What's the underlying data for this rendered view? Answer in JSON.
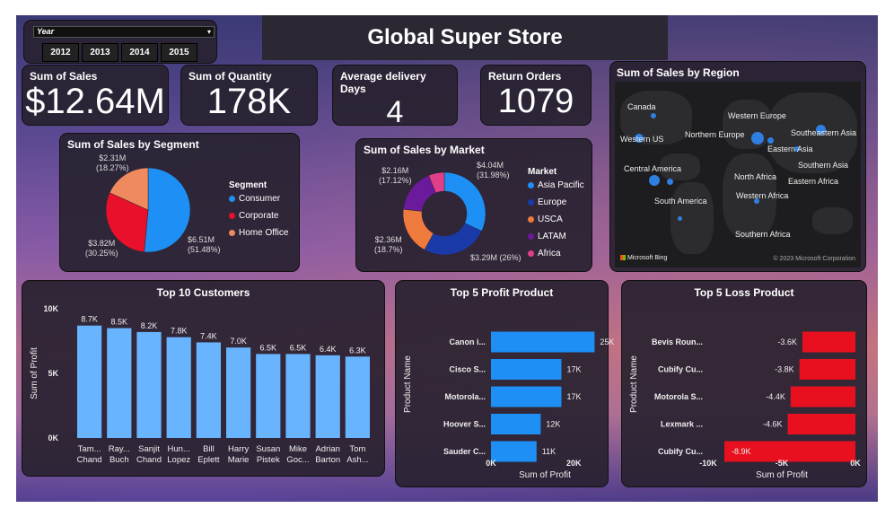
{
  "header": {
    "title": "Global Super Store"
  },
  "year_filter": {
    "label": "Year",
    "years": [
      "2012",
      "2013",
      "2014",
      "2015"
    ]
  },
  "kpis": [
    {
      "label": "Sum of Sales",
      "value": "$12.64M"
    },
    {
      "label": "Sum of Quantity",
      "value": "178K"
    },
    {
      "label": "Average delivery Days",
      "value": "4"
    },
    {
      "label": "Return Orders",
      "value": "1079"
    }
  ],
  "segment": {
    "title": "Sum of Sales by Segment",
    "legend_title": "Segment",
    "slices": [
      {
        "name": "Consumer",
        "value": 51.48,
        "label1": "$6.51M",
        "label2": "(51.48%)",
        "color": "#1e8ff5"
      },
      {
        "name": "Corporate",
        "value": 30.25,
        "label1": "$3.82M",
        "label2": "(30.25%)",
        "color": "#e8102a"
      },
      {
        "name": "Home Office",
        "value": 18.27,
        "label1": "$2.31M",
        "label2": "(18.27%)",
        "color": "#ee8a5e"
      }
    ]
  },
  "market": {
    "title": "Sum of Sales by Market",
    "legend_title": "Market",
    "slices": [
      {
        "name": "Asia Pacific",
        "value": 31.98,
        "label1": "$4.04M",
        "label2": "(31.98%)",
        "color": "#1e8ff5"
      },
      {
        "name": "Europe",
        "value": 26.0,
        "label1": "$3.29M (26%)",
        "label2": "",
        "color": "#1a3aa8"
      },
      {
        "name": "USCA",
        "value": 18.7,
        "label1": "$2.36M",
        "label2": "(18.7%)",
        "color": "#ee7a3e"
      },
      {
        "name": "LATAM",
        "value": 17.12,
        "label1": "$2.16M",
        "label2": "(17.12%)",
        "color": "#6a1a9a"
      },
      {
        "name": "Africa",
        "value": 6.2,
        "label1": "",
        "label2": "",
        "color": "#e0408a"
      }
    ]
  },
  "map": {
    "title": "Sum of Sales by Region",
    "attribution": "Microsoft Bing",
    "copyright": "© 2023 Microsoft Corporation",
    "regions": [
      "Canada",
      "Western US",
      "Central America",
      "South America",
      "Western Europe",
      "Northern Europe",
      "Southeastern Asia",
      "Eastern Asia",
      "Southern Asia",
      "North Africa",
      "Western Africa",
      "Eastern Africa",
      "Southern Africa"
    ]
  },
  "chart_data": [
    {
      "type": "bar",
      "title": "Top 10 Customers",
      "ylabel": "Sum of Profit",
      "categories": [
        "Tam... Chand",
        "Ray... Buch",
        "Sanjit Chand",
        "Hun... Lopez",
        "Bill Eplett",
        "Harry Marie",
        "Susan Pistek",
        "Mike Goc...",
        "Adrian Barton",
        "Tom Ash..."
      ],
      "category_lines": [
        [
          "Tam...",
          "Chand"
        ],
        [
          "Ray...",
          "Buch"
        ],
        [
          "Sanjit",
          "Chand"
        ],
        [
          "Hun...",
          "Lopez"
        ],
        [
          "Bill",
          "Eplett"
        ],
        [
          "Harry",
          "Marie"
        ],
        [
          "Susan",
          "Pistek"
        ],
        [
          "Mike",
          "Goc..."
        ],
        [
          "Adrian",
          "Barton"
        ],
        [
          "Tom",
          "Ash..."
        ]
      ],
      "values": [
        8700,
        8500,
        8200,
        7800,
        7400,
        7000,
        6500,
        6500,
        6400,
        6300
      ],
      "data_labels": [
        "8.7K",
        "8.5K",
        "8.2K",
        "7.8K",
        "7.4K",
        "7.0K",
        "6.5K",
        "6.5K",
        "6.4K",
        "6.3K"
      ],
      "yticks": [
        {
          "v": 10000,
          "t": "10K"
        },
        {
          "v": 5000,
          "t": "5K"
        },
        {
          "v": 0,
          "t": "0K"
        }
      ],
      "ylim": [
        0,
        10000
      ],
      "color": "#69b4ff"
    },
    {
      "type": "bar",
      "orientation": "horizontal",
      "title": "Top 5 Profit Product",
      "xlabel": "Sum of Profit",
      "ylabel": "Product Name",
      "categories": [
        "Canon i...",
        "Cisco S...",
        "Motorola...",
        "Hoover S...",
        "Sauder C..."
      ],
      "values": [
        25000,
        17000,
        17000,
        12000,
        11000
      ],
      "data_labels": [
        "25K",
        "17K",
        "17K",
        "12K",
        "11K"
      ],
      "xticks": [
        {
          "v": 0,
          "t": "0K"
        },
        {
          "v": 20000,
          "t": "20K"
        }
      ],
      "xlim": [
        0,
        26000
      ],
      "color": "#1e8ff5"
    },
    {
      "type": "bar",
      "orientation": "horizontal",
      "title": "Top 5 Loss Product",
      "xlabel": "Sum of Profit",
      "ylabel": "Product Name",
      "categories": [
        "Bevis Roun...",
        "Cubify Cu...",
        "Motorola S...",
        "Lexmark ...",
        "Cubify Cu..."
      ],
      "values": [
        -3600,
        -3800,
        -4400,
        -4600,
        -8900
      ],
      "data_labels": [
        "-3.6K",
        "-3.8K",
        "-4.4K",
        "-4.6K",
        "-8.9K"
      ],
      "xticks": [
        {
          "v": -10000,
          "t": "-10K"
        },
        {
          "v": -5000,
          "t": "-5K"
        },
        {
          "v": 0,
          "t": "0K"
        }
      ],
      "xlim": [
        -10000,
        0
      ],
      "color": "#e8101e"
    }
  ]
}
